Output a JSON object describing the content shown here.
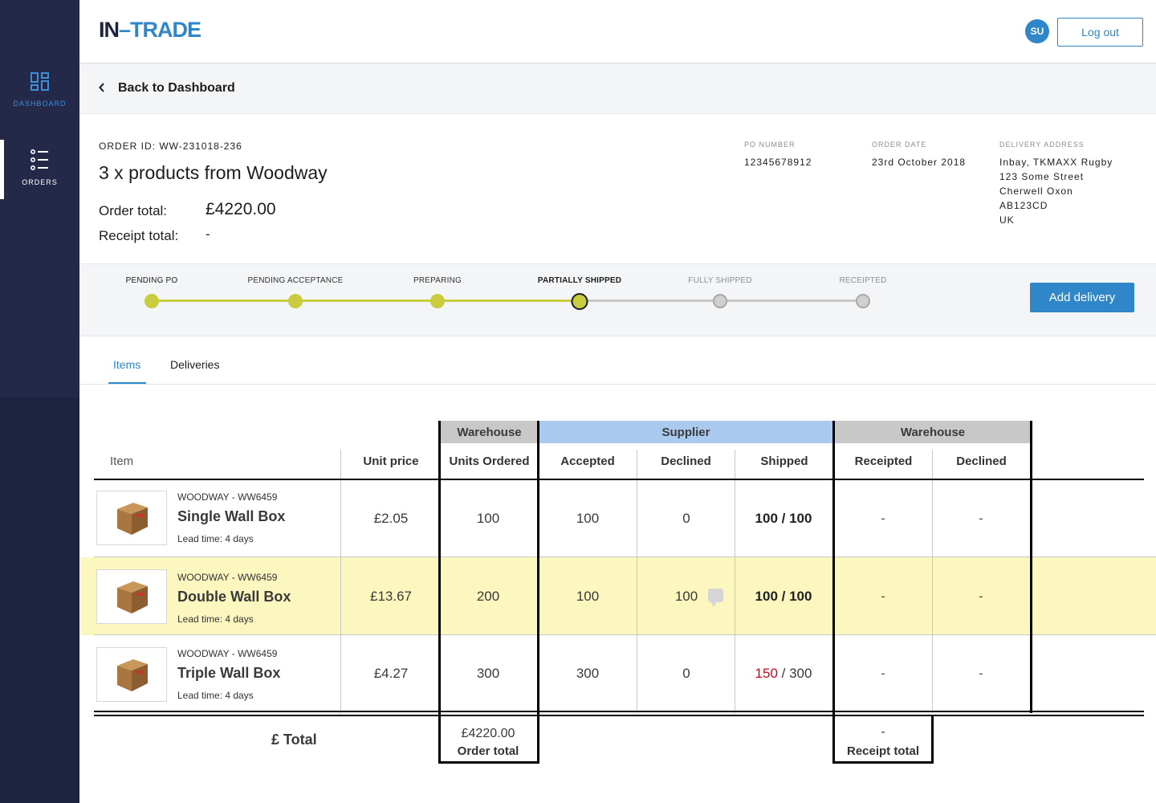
{
  "sidebar": {
    "items": [
      {
        "label": "DASHBOARD",
        "icon": "dashboard-icon"
      },
      {
        "label": "ORDERS",
        "icon": "list-icon"
      }
    ]
  },
  "header": {
    "logo_part1": "IN",
    "logo_part2": "–TRADE",
    "avatar_initials": "SU",
    "logout_label": "Log out"
  },
  "back": {
    "label": "Back to Dashboard"
  },
  "order": {
    "id_label": "ORDER ID: WW-231018-236",
    "title": "3 x products from Woodway",
    "total_label": "Order total:",
    "total_value": "£4220.00",
    "receipt_label": "Receipt total:",
    "receipt_value": "-",
    "po_label": "PO NUMBER",
    "po_value": "12345678912",
    "date_label": "ORDER DATE",
    "date_value": "23rd October 2018",
    "address_label": "DELIVERY ADDRESS",
    "address_lines": [
      "Inbay, TKMAXX Rugby",
      "123 Some Street",
      "Cherwell Oxon",
      "AB123CD",
      "UK"
    ]
  },
  "progress": {
    "steps": [
      {
        "label": "PENDING PO",
        "state": "done"
      },
      {
        "label": "PENDING ACCEPTANCE",
        "state": "done"
      },
      {
        "label": "PREPARING",
        "state": "done"
      },
      {
        "label": "PARTIALLY SHIPPED",
        "state": "current"
      },
      {
        "label": "FULLY SHIPPED",
        "state": "todo"
      },
      {
        "label": "RECEIPTED",
        "state": "todo"
      }
    ],
    "add_delivery_label": "Add delivery",
    "colors": {
      "done": "#c9cc3f",
      "todo": "#c8c8c8",
      "accent": "#2f86c9"
    }
  },
  "tabs": [
    {
      "label": "Items",
      "active": true
    },
    {
      "label": "Deliveries",
      "active": false
    }
  ],
  "table": {
    "groups": {
      "warehouse1": "Warehouse",
      "supplier": "Supplier",
      "warehouse2": "Warehouse"
    },
    "columns": {
      "item": "Item",
      "unit_price": "Unit price",
      "units_ordered": "Units Ordered",
      "accepted": "Accepted",
      "declined": "Declined",
      "shipped": "Shipped",
      "receipted": "Receipted",
      "declined2": "Declined"
    },
    "rows": [
      {
        "sku": "WOODWAY - WW6459",
        "name": "Single Wall Box",
        "lead": "Lead time: 4 days",
        "unit_price": "£2.05",
        "units_ordered": "100",
        "accepted": "100",
        "declined": "0",
        "shipped_a": "100",
        "shipped_sep": " / ",
        "shipped_b": "100",
        "receipted": "-",
        "declined2": "-"
      },
      {
        "sku": "WOODWAY - WW6459",
        "name": "Double Wall Box",
        "lead": "Lead time: 4 days",
        "unit_price": "£13.67",
        "units_ordered": "200",
        "accepted": "100",
        "declined": "100",
        "shipped_a": "100",
        "shipped_sep": " / ",
        "shipped_b": "100",
        "receipted": "-",
        "declined2": "-"
      },
      {
        "sku": "WOODWAY - WW6459",
        "name": "Triple Wall Box",
        "lead": "Lead time: 4 days",
        "unit_price": "£4.27",
        "units_ordered": "300",
        "accepted": "300",
        "declined": "0",
        "shipped_a": "150",
        "shipped_sep": " / ",
        "shipped_b": "300",
        "receipted": "-",
        "declined2": "-"
      }
    ],
    "footer": {
      "total_label": "£ Total",
      "order_total_value": "£4220.00",
      "order_total_label": "Order total",
      "receipt_total_value": "-",
      "receipt_total_label": "Receipt total"
    }
  }
}
